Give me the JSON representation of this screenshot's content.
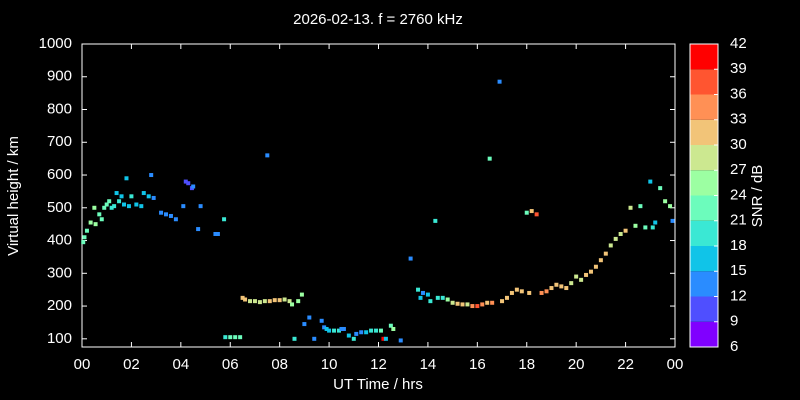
{
  "chart_data": {
    "type": "scatter",
    "title": "2026-02-13. f = 2760 kHz",
    "x_label": "UT Time / hrs",
    "y_label": "Virtual height / km",
    "xlim": [
      0,
      24
    ],
    "ylim": [
      75,
      1000
    ],
    "xticks": [
      {
        "value": 0,
        "label": "00"
      },
      {
        "value": 2,
        "label": "02"
      },
      {
        "value": 4,
        "label": "04"
      },
      {
        "value": 6,
        "label": "06"
      },
      {
        "value": 8,
        "label": "08"
      },
      10,
      12,
      14,
      16,
      18,
      20,
      22,
      {
        "value": 24,
        "label": "00"
      }
    ],
    "yticks": [
      100,
      200,
      300,
      400,
      500,
      600,
      700,
      800,
      900,
      1000
    ],
    "x": [
      0.05,
      0.1,
      0.2,
      0.35,
      0.5,
      0.55,
      0.7,
      0.8,
      0.9,
      1.0,
      1.1,
      1.2,
      1.3,
      1.4,
      1.5,
      1.6,
      1.7,
      1.8,
      1.9,
      2.0,
      2.2,
      2.4,
      2.5,
      2.7,
      2.8,
      2.9,
      3.2,
      3.4,
      3.6,
      3.8,
      4.1,
      4.2,
      4.3,
      4.45,
      4.5,
      4.7,
      4.8,
      5.4,
      5.5,
      5.75,
      5.8,
      6.0,
      6.2,
      6.4,
      6.5,
      6.6,
      6.8,
      7.0,
      7.2,
      7.4,
      7.5,
      7.6,
      7.8,
      8.0,
      8.2,
      8.4,
      8.5,
      8.6,
      8.75,
      8.9,
      9.0,
      9.2,
      9.4,
      9.7,
      9.8,
      9.9,
      10.0,
      10.2,
      10.4,
      10.5,
      10.6,
      10.8,
      11.0,
      11.1,
      11.3,
      11.5,
      11.7,
      11.9,
      12.1,
      12.2,
      12.3,
      12.5,
      12.6,
      12.9,
      13.3,
      13.6,
      13.7,
      13.8,
      14.0,
      14.1,
      14.3,
      14.4,
      14.6,
      14.8,
      15.0,
      15.2,
      15.4,
      15.6,
      15.8,
      16.0,
      16.2,
      16.4,
      16.5,
      16.6,
      16.9,
      17.0,
      17.2,
      17.4,
      17.6,
      17.8,
      18.0,
      18.1,
      18.2,
      18.4,
      18.6,
      18.8,
      19.0,
      19.2,
      19.4,
      19.6,
      19.8,
      20.0,
      20.2,
      20.4,
      20.6,
      20.8,
      21.0,
      21.2,
      21.4,
      21.6,
      21.8,
      22.0,
      22.2,
      22.4,
      22.6,
      22.8,
      23.0,
      23.1,
      23.2,
      23.4,
      23.6,
      23.8,
      23.9
    ],
    "y": [
      395,
      410,
      430,
      455,
      500,
      450,
      480,
      465,
      500,
      510,
      520,
      500,
      505,
      545,
      520,
      535,
      510,
      590,
      505,
      535,
      510,
      505,
      545,
      535,
      600,
      530,
      485,
      480,
      475,
      465,
      505,
      580,
      575,
      560,
      565,
      435,
      505,
      420,
      420,
      465,
      105,
      105,
      105,
      105,
      225,
      220,
      215,
      215,
      212,
      215,
      660,
      215,
      218,
      218,
      220,
      215,
      205,
      100,
      215,
      235,
      145,
      165,
      100,
      155,
      135,
      130,
      125,
      125,
      125,
      130,
      130,
      110,
      100,
      115,
      120,
      120,
      125,
      125,
      125,
      100,
      100,
      140,
      130,
      95,
      345,
      250,
      225,
      240,
      235,
      215,
      460,
      225,
      225,
      220,
      210,
      207,
      205,
      205,
      200,
      200,
      205,
      210,
      650,
      210,
      885,
      215,
      225,
      240,
      250,
      245,
      485,
      240,
      490,
      480,
      240,
      245,
      255,
      265,
      260,
      255,
      270,
      290,
      280,
      295,
      305,
      320,
      340,
      360,
      385,
      405,
      420,
      430,
      500,
      445,
      505,
      440,
      580,
      440,
      455,
      560,
      520,
      505,
      460
    ],
    "snr": [
      21,
      21,
      21,
      24,
      24,
      24,
      21,
      21,
      21,
      21,
      21,
      18,
      18,
      15,
      18,
      15,
      15,
      15,
      15,
      18,
      15,
      15,
      15,
      15,
      12,
      12,
      12,
      12,
      12,
      12,
      12,
      9,
      9,
      9,
      12,
      12,
      12,
      12,
      12,
      18,
      18,
      21,
      21,
      21,
      30,
      30,
      27,
      27,
      27,
      27,
      12,
      30,
      30,
      30,
      27,
      27,
      24,
      18,
      24,
      24,
      12,
      12,
      12,
      12,
      12,
      15,
      15,
      18,
      18,
      12,
      12,
      15,
      18,
      12,
      12,
      15,
      18,
      18,
      21,
      39,
      15,
      21,
      24,
      12,
      12,
      18,
      15,
      12,
      15,
      18,
      18,
      18,
      18,
      24,
      27,
      30,
      30,
      27,
      33,
      36,
      33,
      30,
      21,
      33,
      12,
      30,
      30,
      30,
      30,
      30,
      21,
      30,
      30,
      36,
      33,
      33,
      30,
      30,
      30,
      30,
      27,
      27,
      27,
      30,
      30,
      30,
      30,
      30,
      27,
      27,
      27,
      30,
      27,
      24,
      21,
      21,
      15,
      18,
      15,
      21,
      24,
      24,
      12
    ],
    "colorbar": {
      "label": "SNR / dB",
      "ticks": [
        6,
        9,
        12,
        15,
        18,
        21,
        24,
        27,
        30,
        33,
        36,
        39,
        42
      ],
      "colors": [
        "#8000ff",
        "#4f4fff",
        "#2a8cff",
        "#10c4e8",
        "#3ae8d4",
        "#6cfcbc",
        "#9cffa2",
        "#cce890",
        "#f2c478",
        "#ff9055",
        "#ff5530",
        "#ff0000"
      ]
    }
  }
}
